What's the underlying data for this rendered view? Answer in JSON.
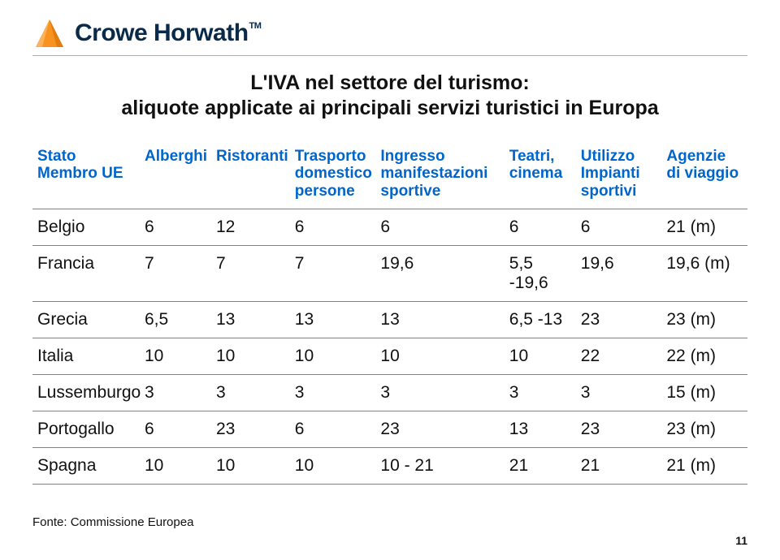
{
  "brand": {
    "name": "Crowe Horwath",
    "tm": "TM",
    "logo_color": "#f7931e",
    "text_color": "#0a2a4a"
  },
  "title": {
    "line1": "L'IVA nel settore del turismo:",
    "line2": "aliquote applicate ai principali servizi turistici in Europa"
  },
  "table": {
    "header_color": "#0066cc",
    "columns": [
      "Stato Membro UE",
      "Alberghi",
      "Ristoranti",
      "Trasporto domestico persone",
      "Ingresso manifestazioni sportive",
      "Teatri, cinema",
      "Utilizzo Impianti sportivi",
      "Agenzie di viaggio"
    ],
    "rows": [
      [
        "Belgio",
        "6",
        "12",
        "6",
        "6",
        "6",
        "6",
        "21 (m)"
      ],
      [
        "Francia",
        "7",
        "7",
        "7",
        "19,6",
        "5,5 -19,6",
        "19,6",
        "19,6 (m)"
      ],
      [
        "Grecia",
        "6,5",
        "13",
        "13",
        "13",
        "6,5 -13",
        "23",
        "23 (m)"
      ],
      [
        "Italia",
        "10",
        "10",
        "10",
        "10",
        "10",
        "22",
        "22 (m)"
      ],
      [
        "Lussemburgo",
        "3",
        "3",
        "3",
        "3",
        "3",
        "3",
        "15 (m)"
      ],
      [
        "Portogallo",
        "6",
        "23",
        "6",
        "23",
        "13",
        "23",
        "23 (m)"
      ],
      [
        "Spagna",
        "10",
        "10",
        "10",
        "10 - 21",
        "21",
        "21",
        "21 (m)"
      ]
    ]
  },
  "source": "Fonte: Commissione Europea",
  "page_number": "11"
}
